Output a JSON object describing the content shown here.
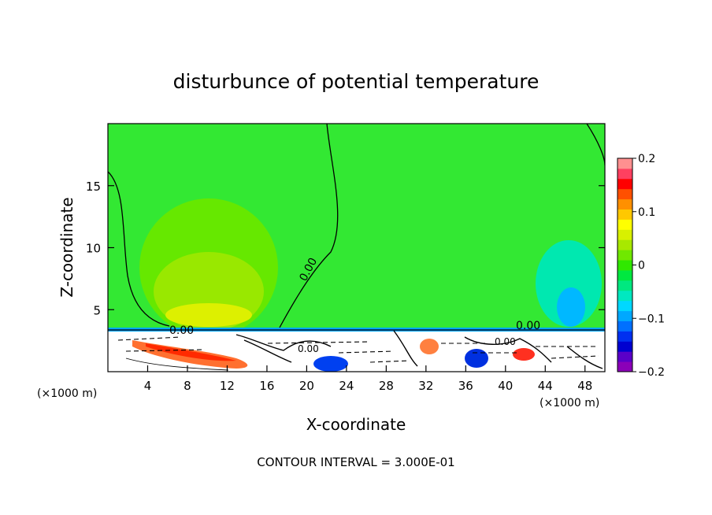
{
  "chart_data": {
    "type": "heatmap",
    "title": "disturbunce of potential temperature",
    "xlabel": "X-coordinate",
    "ylabel": "Z-coordinate",
    "x_unit_left": "(×1000 m)",
    "x_unit_right": "(×1000 m)",
    "xlim": [
      0,
      50
    ],
    "ylim": [
      0,
      20
    ],
    "x_ticks": [
      4,
      8,
      12,
      16,
      20,
      24,
      28,
      32,
      36,
      40,
      44,
      48
    ],
    "y_ticks": [
      5,
      10,
      15
    ],
    "colorbar": {
      "range": [
        -0.2,
        0.2
      ],
      "tick_values": [
        0.2,
        0.1,
        0,
        -0.1,
        -0.2
      ],
      "tick_labels": [
        "0.2",
        "0.1",
        "0",
        "−0.1",
        "−0.2"
      ],
      "colors": [
        "#8b00b8",
        "#5a00c8",
        "#0000d0",
        "#0030f0",
        "#0070ff",
        "#00a8ff",
        "#00d8ff",
        "#00e8c0",
        "#00e880",
        "#00e840",
        "#30e800",
        "#70e800",
        "#a8e800",
        "#d8f000",
        "#ffff00",
        "#ffc800",
        "#ff9000",
        "#ff5000",
        "#ff0000",
        "#ff4060",
        "#ff9090"
      ]
    },
    "contour_labels": [
      "0.00",
      "0.00",
      "0.00",
      "0.00",
      "0.00"
    ],
    "annotation": "CONTOUR INTERVAL = 3.000E-01"
  }
}
